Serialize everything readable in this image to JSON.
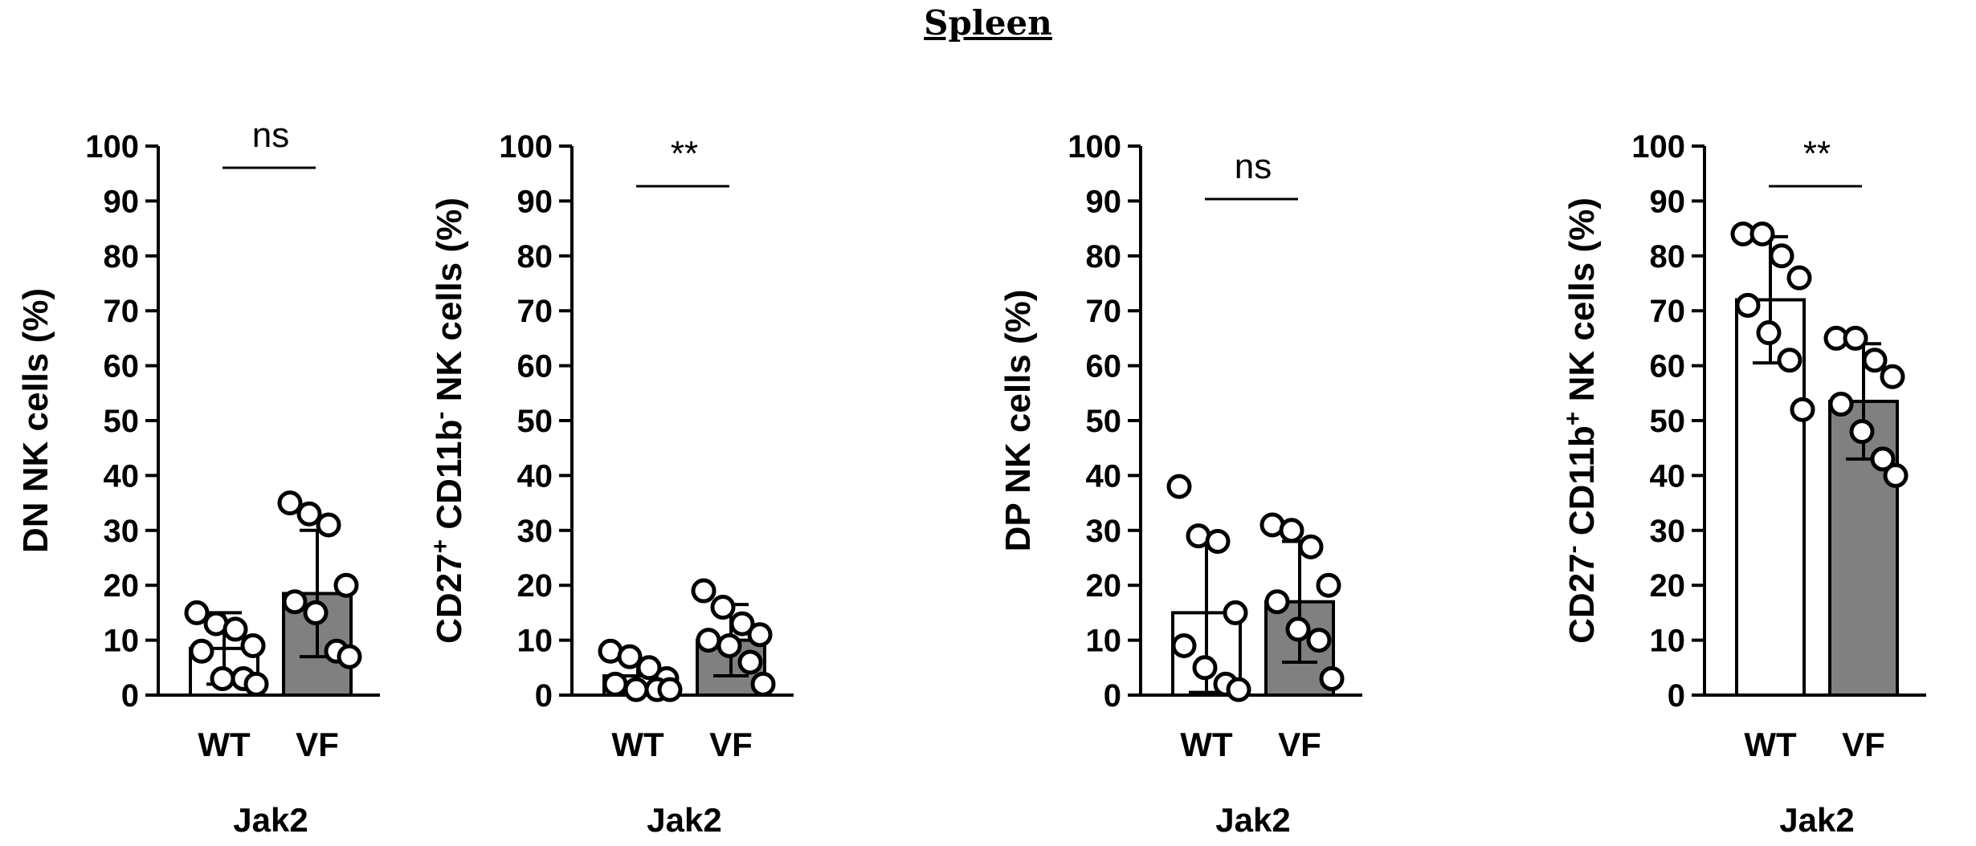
{
  "figure": {
    "title": "Spleen"
  },
  "chart_data": [
    {
      "type": "bar",
      "ylabel_parts": [
        {
          "t": "DN NK cells (%)",
          "sup": false
        }
      ],
      "xlabel": "Jak2",
      "categories": [
        "WT",
        "VF"
      ],
      "ylim": [
        0,
        100
      ],
      "yticks": [
        0,
        10,
        20,
        30,
        40,
        50,
        60,
        70,
        80,
        90,
        100
      ],
      "significance": "ns",
      "series": [
        {
          "category": "WT",
          "fill": "#ffffff",
          "mean": 8.5,
          "sd": 6.5,
          "points": [
            15,
            13,
            12,
            9,
            8,
            3,
            3,
            2
          ]
        },
        {
          "category": "VF",
          "fill": "#808080",
          "mean": 18.5,
          "sd": 11.5,
          "points": [
            35,
            33,
            31,
            20,
            17,
            15,
            8,
            7
          ]
        }
      ]
    },
    {
      "type": "bar",
      "ylabel_parts": [
        {
          "t": "CD27",
          "sup": false
        },
        {
          "t": "+",
          "sup": true
        },
        {
          "t": " CD11b",
          "sup": false
        },
        {
          "t": "-",
          "sup": true
        },
        {
          "t": " NK cells (%)",
          "sup": false
        }
      ],
      "xlabel": "Jak2",
      "categories": [
        "WT",
        "VF"
      ],
      "ylim": [
        0,
        100
      ],
      "yticks": [
        0,
        10,
        20,
        30,
        40,
        50,
        60,
        70,
        80,
        90,
        100
      ],
      "significance": "**",
      "series": [
        {
          "category": "WT",
          "fill": "#ffffff",
          "mean": 3.5,
          "sd": 3,
          "points": [
            8,
            7,
            5,
            3,
            2,
            1,
            1,
            1
          ]
        },
        {
          "category": "VF",
          "fill": "#808080",
          "mean": 10,
          "sd": 6.5,
          "points": [
            19,
            16,
            13,
            11,
            10,
            9,
            6,
            2
          ]
        }
      ]
    },
    {
      "type": "bar",
      "ylabel_parts": [
        {
          "t": "DP NK cells (%)",
          "sup": false
        }
      ],
      "xlabel": "Jak2",
      "categories": [
        "WT",
        "VF"
      ],
      "ylim": [
        0,
        100
      ],
      "yticks": [
        0,
        10,
        20,
        30,
        40,
        50,
        60,
        70,
        80,
        90,
        100
      ],
      "significance": "ns",
      "series": [
        {
          "category": "WT",
          "fill": "#ffffff",
          "mean": 15,
          "sd": 14.5,
          "points": [
            38,
            29,
            28,
            15,
            9,
            5,
            2,
            1
          ]
        },
        {
          "category": "VF",
          "fill": "#808080",
          "mean": 17,
          "sd": 11,
          "points": [
            31,
            30,
            27,
            20,
            17,
            12,
            10,
            3
          ]
        }
      ]
    },
    {
      "type": "bar",
      "ylabel_parts": [
        {
          "t": "CD27",
          "sup": false
        },
        {
          "t": "-",
          "sup": true
        },
        {
          "t": " CD11b",
          "sup": false
        },
        {
          "t": "+",
          "sup": true
        },
        {
          "t": " NK cells (%)",
          "sup": false
        }
      ],
      "xlabel": "Jak2",
      "categories": [
        "WT",
        "VF"
      ],
      "ylim": [
        0,
        100
      ],
      "yticks": [
        0,
        10,
        20,
        30,
        40,
        50,
        60,
        70,
        80,
        90,
        100
      ],
      "significance": "**",
      "series": [
        {
          "category": "WT",
          "fill": "#ffffff",
          "mean": 72,
          "sd": 11.5,
          "points": [
            84,
            84,
            80,
            76,
            71,
            66,
            61,
            52
          ]
        },
        {
          "category": "VF",
          "fill": "#808080",
          "mean": 53.5,
          "sd": 10.5,
          "points": [
            65,
            65,
            61,
            58,
            53,
            48,
            43,
            40
          ]
        }
      ]
    }
  ]
}
